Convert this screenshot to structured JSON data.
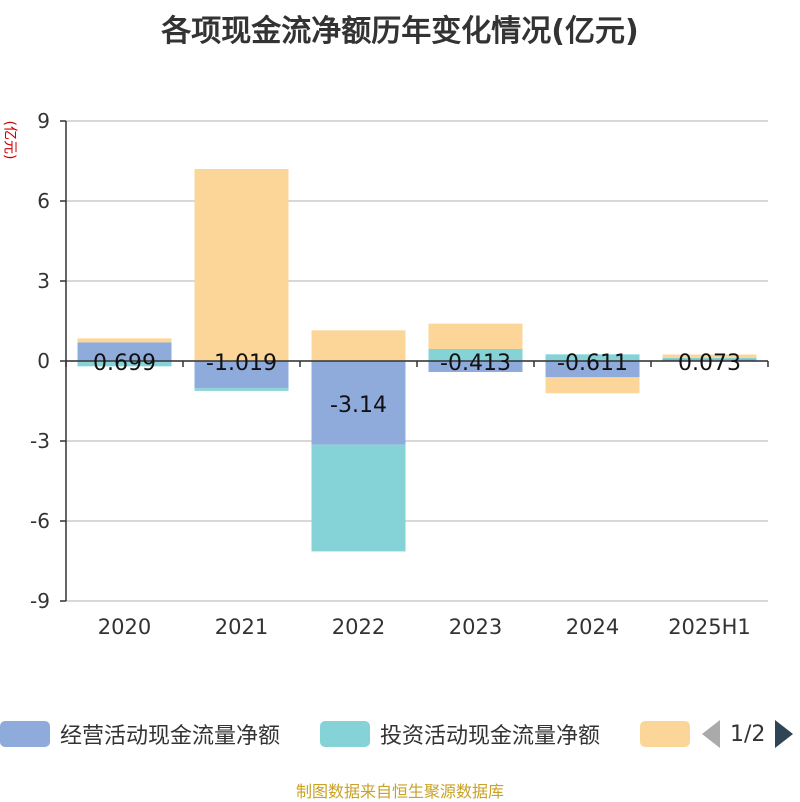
{
  "title": "各项现金流净额历年变化情况(亿元)",
  "y_unit": "(亿元)",
  "source": "制图数据来自恒生聚源数据库",
  "legend": {
    "items": [
      {
        "label": "经营活动现金流量净额",
        "color": "#8fabdb"
      },
      {
        "label": "投资活动现金流量净额",
        "color": "#85d3d6"
      },
      {
        "label": "",
        "color": "#fcd699"
      }
    ],
    "pager": "1/2"
  },
  "chart_data": {
    "type": "bar",
    "stacked": true,
    "categories": [
      "2020",
      "2021",
      "2022",
      "2023",
      "2024",
      "2025H1"
    ],
    "ylim": [
      -9,
      9
    ],
    "yticks": [
      9,
      6,
      3,
      0,
      -3,
      -6,
      -9
    ],
    "grid": true,
    "legend_position": "bottom",
    "series": [
      {
        "name": "经营活动现金流量净额",
        "color": "#8fabdb",
        "values": [
          0.699,
          -1.019,
          -3.14,
          -0.413,
          -0.611,
          0.073
        ]
      },
      {
        "name": "投资活动现金流量净额",
        "color": "#85d3d6",
        "values": [
          -0.2,
          -0.1,
          -4.0,
          0.45,
          0.25,
          0.05
        ]
      },
      {
        "color": "#fcd699",
        "values": [
          0.15,
          7.2,
          1.15,
          0.95,
          -0.6,
          0.12
        ]
      }
    ],
    "data_labels": [
      "0.699",
      "-1.019",
      "-3.14",
      "-0.413",
      "-0.611",
      "0.073"
    ]
  }
}
